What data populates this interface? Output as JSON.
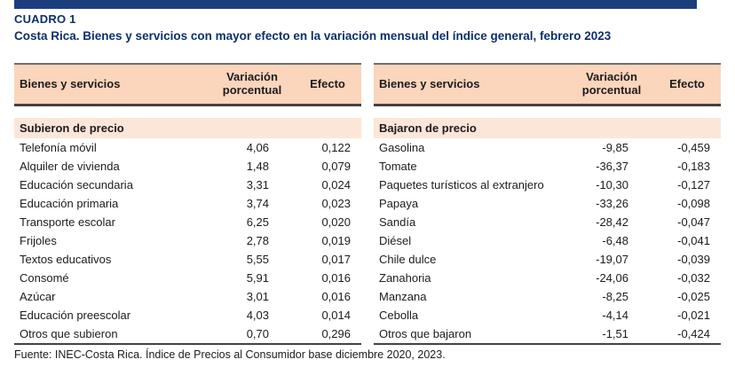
{
  "page": {
    "label": "CUADRO 1",
    "title": "Costa Rica. Bienes y servicios con mayor efecto en la variación mensual del índice general, febrero 2023",
    "source": "Fuente: INEC-Costa Rica. Índice de Precios al Consumidor base diciembre 2020, 2023."
  },
  "colors": {
    "accent_bar": "#1d3e7e",
    "heading_text": "#0d2f6d",
    "header_bg": "#fbd5bc",
    "section_bg": "#fce6d8",
    "border_dark": "#434343",
    "body_text": "#1c1c1c"
  },
  "tables": [
    {
      "columns": [
        "Bienes y servicios",
        "Variación porcentual",
        "Efecto"
      ],
      "section": "Subieron de precio",
      "rows": [
        {
          "name": "Telefonía móvil",
          "variation": "4,06",
          "effect": "0,122"
        },
        {
          "name": "Alquiler de vivienda",
          "variation": "1,48",
          "effect": "0,079"
        },
        {
          "name": "Educación secundaria",
          "variation": "3,31",
          "effect": "0,024"
        },
        {
          "name": "Educación primaria",
          "variation": "3,74",
          "effect": "0,023"
        },
        {
          "name": "Transporte escolar",
          "variation": "6,25",
          "effect": "0,020"
        },
        {
          "name": "Frijoles",
          "variation": "2,78",
          "effect": "0,019"
        },
        {
          "name": "Textos educativos",
          "variation": "5,55",
          "effect": "0,017"
        },
        {
          "name": "Consomé",
          "variation": "5,91",
          "effect": "0,016"
        },
        {
          "name": "Azúcar",
          "variation": "3,01",
          "effect": "0,016"
        },
        {
          "name": "Educación preescolar",
          "variation": "4,03",
          "effect": "0,014"
        },
        {
          "name": "Otros que subieron",
          "variation": "0,70",
          "effect": "0,296"
        }
      ]
    },
    {
      "columns": [
        "Bienes y servicios",
        "Variación porcentual",
        "Efecto"
      ],
      "section": "Bajaron de precio",
      "rows": [
        {
          "name": "Gasolina",
          "variation": "-9,85",
          "effect": "-0,459"
        },
        {
          "name": "Tomate",
          "variation": "-36,37",
          "effect": "-0,183"
        },
        {
          "name": "Paquetes turísticos al extranjero",
          "variation": "-10,30",
          "effect": "-0,127"
        },
        {
          "name": "Papaya",
          "variation": "-33,26",
          "effect": "-0,098"
        },
        {
          "name": "Sandía",
          "variation": "-28,42",
          "effect": "-0,047"
        },
        {
          "name": "Diésel",
          "variation": "-6,48",
          "effect": "-0,041"
        },
        {
          "name": "Chile dulce",
          "variation": "-19,07",
          "effect": "-0,039"
        },
        {
          "name": "Zanahoria",
          "variation": "-24,06",
          "effect": "-0,032"
        },
        {
          "name": "Manzana",
          "variation": "-8,25",
          "effect": "-0,025"
        },
        {
          "name": "Cebolla",
          "variation": "-4,14",
          "effect": "-0,021"
        },
        {
          "name": "Otros que bajaron",
          "variation": "-1,51",
          "effect": "-0,424"
        }
      ]
    }
  ]
}
